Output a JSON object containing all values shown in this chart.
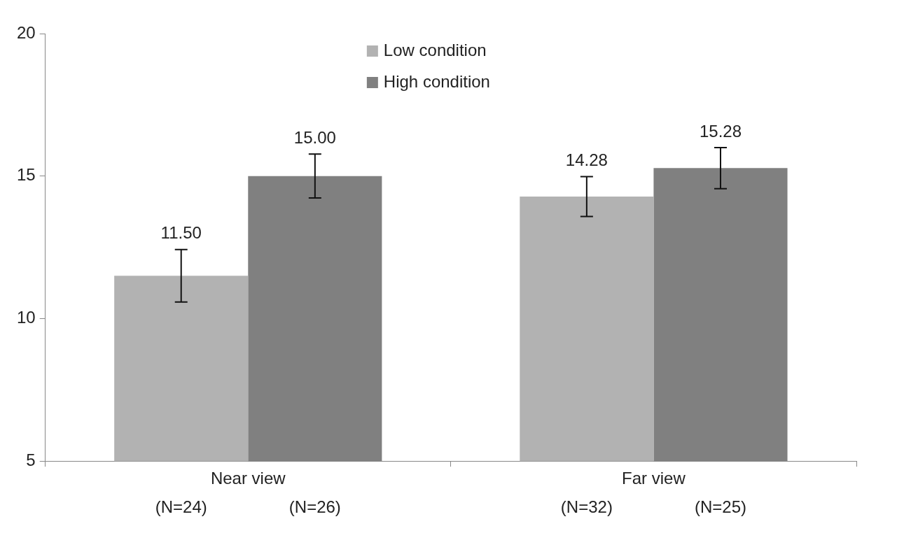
{
  "chart_data": {
    "type": "bar",
    "categories": [
      "Near view",
      "Far view"
    ],
    "series": [
      {
        "name": "Low condition",
        "color": "#b2b2b2",
        "values": [
          11.5,
          14.28
        ],
        "value_labels": [
          "11.50",
          "14.28"
        ],
        "errors": [
          0.92,
          0.7
        ]
      },
      {
        "name": "High condition",
        "color": "#808080",
        "values": [
          15.0,
          15.28
        ],
        "value_labels": [
          "15.00",
          "15.28"
        ],
        "errors": [
          0.77,
          0.72
        ]
      }
    ],
    "ylim": [
      5,
      20
    ],
    "yticks": [
      5,
      10,
      15,
      20
    ],
    "annotations": [
      "(N=24)",
      "(N=26)",
      "(N=32)",
      "(N=25)"
    ],
    "grid": false,
    "legend": "top"
  }
}
